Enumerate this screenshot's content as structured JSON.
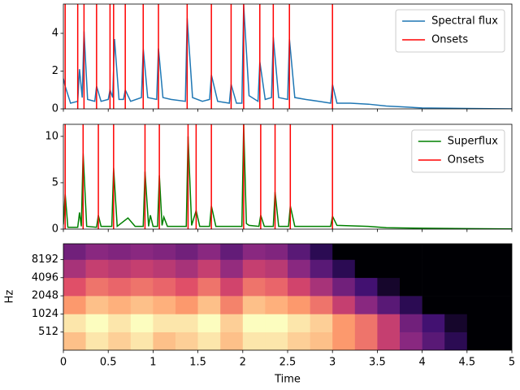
{
  "chart_data": [
    {
      "type": "line",
      "series": [
        {
          "name": "Spectral flux",
          "color": "#1f77b4",
          "x": [
            0,
            0.02,
            0.08,
            0.16,
            0.18,
            0.21,
            0.23,
            0.27,
            0.35,
            0.37,
            0.42,
            0.5,
            0.52,
            0.55,
            0.57,
            0.62,
            0.67,
            0.69,
            0.75,
            0.87,
            0.89,
            0.94,
            1.04,
            1.06,
            1.11,
            1.2,
            1.36,
            1.38,
            1.44,
            1.55,
            1.63,
            1.65,
            1.72,
            1.85,
            1.87,
            1.93,
            1.99,
            2.01,
            2.07,
            2.17,
            2.19,
            2.25,
            2.32,
            2.34,
            2.4,
            2.5,
            2.52,
            2.58,
            2.7,
            2.85,
            2.98,
            3.0,
            3.05,
            3.2,
            3.4,
            3.6,
            3.8,
            4.0,
            4.5,
            5.0
          ],
          "values": [
            1.6,
            1.2,
            0.3,
            0.4,
            2.1,
            0.6,
            4.1,
            0.5,
            0.4,
            1.2,
            0.4,
            0.5,
            1.0,
            0.6,
            3.7,
            0.5,
            0.5,
            1.0,
            0.4,
            0.6,
            3.2,
            0.6,
            0.5,
            3.2,
            0.6,
            0.5,
            0.4,
            4.8,
            0.6,
            0.4,
            0.5,
            1.8,
            0.4,
            0.3,
            1.3,
            0.3,
            0.3,
            5.5,
            0.7,
            0.4,
            2.5,
            0.5,
            0.6,
            3.8,
            0.6,
            0.5,
            3.7,
            0.6,
            0.5,
            0.4,
            0.3,
            1.3,
            0.3,
            0.3,
            0.25,
            0.15,
            0.1,
            0.05,
            0.02,
            0.0
          ]
        }
      ],
      "vlines": {
        "name": "Onsets",
        "color": "#ff0000",
        "x": [
          0.02,
          0.16,
          0.23,
          0.37,
          0.52,
          0.56,
          0.69,
          0.89,
          1.06,
          1.38,
          1.65,
          1.87,
          2.01,
          2.19,
          2.34,
          2.52,
          3.0
        ]
      },
      "xlim": [
        0,
        5
      ],
      "ylim": [
        0,
        5.55
      ],
      "yticks": [
        0,
        2,
        4
      ],
      "legend": "upper right"
    },
    {
      "type": "line",
      "series": [
        {
          "name": "Superflux",
          "color": "#008000",
          "x": [
            0,
            0.02,
            0.05,
            0.16,
            0.18,
            0.2,
            0.22,
            0.26,
            0.37,
            0.39,
            0.42,
            0.54,
            0.56,
            0.6,
            0.72,
            0.8,
            0.89,
            0.91,
            0.95,
            0.97,
            1.0,
            1.05,
            1.07,
            1.1,
            1.12,
            1.16,
            1.37,
            1.39,
            1.43,
            1.48,
            1.52,
            1.63,
            1.65,
            1.7,
            1.99,
            2.01,
            2.04,
            2.07,
            2.18,
            2.2,
            2.24,
            2.34,
            2.36,
            2.4,
            2.51,
            2.53,
            2.58,
            2.98,
            3.0,
            3.05,
            3.4,
            3.6,
            4.0,
            4.5,
            5.0
          ],
          "values": [
            0.5,
            3.8,
            0.2,
            0.2,
            1.8,
            0.3,
            8.2,
            0.3,
            0.2,
            1.5,
            0.3,
            0.3,
            6.6,
            0.3,
            1.2,
            0.3,
            0.3,
            6.2,
            0.3,
            1.5,
            0.3,
            0.3,
            5.8,
            0.4,
            1.3,
            0.3,
            0.3,
            10.0,
            0.4,
            2.0,
            0.3,
            0.3,
            2.5,
            0.3,
            0.3,
            11.3,
            0.6,
            0.4,
            0.3,
            1.5,
            0.3,
            0.3,
            4.0,
            0.3,
            0.3,
            2.5,
            0.3,
            0.3,
            1.4,
            0.4,
            0.3,
            0.15,
            0.1,
            0.05,
            0.02
          ]
        }
      ],
      "vlines": {
        "name": "Onsets",
        "color": "#ff0000",
        "x": [
          0.02,
          0.22,
          0.39,
          0.56,
          0.91,
          1.07,
          1.39,
          1.48,
          1.65,
          2.01,
          2.2,
          2.36,
          2.53,
          3.0
        ]
      },
      "xlim": [
        0,
        5
      ],
      "ylim": [
        0,
        11.3
      ],
      "yticks": [
        0,
        5,
        10
      ],
      "legend": "upper right"
    },
    {
      "type": "heatmap",
      "xlabel": "Time",
      "ylabel": "Hz",
      "yscale": "log",
      "colormap": "magma",
      "x_edges": [
        0,
        0.25,
        0.5,
        0.75,
        1,
        1.25,
        1.5,
        1.75,
        2,
        2.25,
        2.5,
        2.75,
        3,
        3.25,
        3.5,
        3.75,
        4,
        4.25,
        4.5,
        4.75,
        5
      ],
      "y_edges": [
        256,
        512,
        1024,
        2048,
        4096,
        8192,
        15000
      ],
      "z": [
        [
          -20,
          -15,
          -18,
          -15,
          -20,
          -18,
          -15,
          -20,
          -15,
          -15,
          -18,
          -20,
          -25,
          -30,
          -40,
          -50,
          -60,
          -70,
          -80,
          -80
        ],
        [
          -15,
          -12,
          -15,
          -12,
          -15,
          -15,
          -12,
          -18,
          -12,
          -12,
          -15,
          -18,
          -25,
          -30,
          -40,
          -55,
          -65,
          -75,
          -80,
          -80
        ],
        [
          -25,
          -20,
          -22,
          -20,
          -22,
          -25,
          -20,
          -28,
          -20,
          -22,
          -25,
          -30,
          -40,
          -50,
          -60,
          -70,
          -80,
          -80,
          -80,
          -80
        ],
        [
          -35,
          -30,
          -32,
          -30,
          -32,
          -35,
          -30,
          -38,
          -30,
          -32,
          -38,
          -45,
          -55,
          -65,
          -75,
          -80,
          -80,
          -80,
          -80,
          -80
        ],
        [
          -45,
          -40,
          -42,
          -40,
          -42,
          -45,
          -40,
          -48,
          -40,
          -42,
          -50,
          -60,
          -70,
          -80,
          -80,
          -80,
          -80,
          -80,
          -80,
          -80
        ],
        [
          -55,
          -50,
          -52,
          -50,
          -52,
          -55,
          -50,
          -58,
          -50,
          -52,
          -60,
          -70,
          -80,
          -80,
          -80,
          -80,
          -80,
          -80,
          -80,
          -80
        ]
      ],
      "xlim": [
        0,
        5
      ],
      "xticks": [
        0,
        0.5,
        1,
        1.5,
        2,
        2.5,
        3,
        3.5,
        4,
        4.5,
        5
      ],
      "ylim": [
        256,
        15000
      ],
      "yticks": [
        512,
        1024,
        2048,
        4096,
        8192
      ]
    }
  ]
}
